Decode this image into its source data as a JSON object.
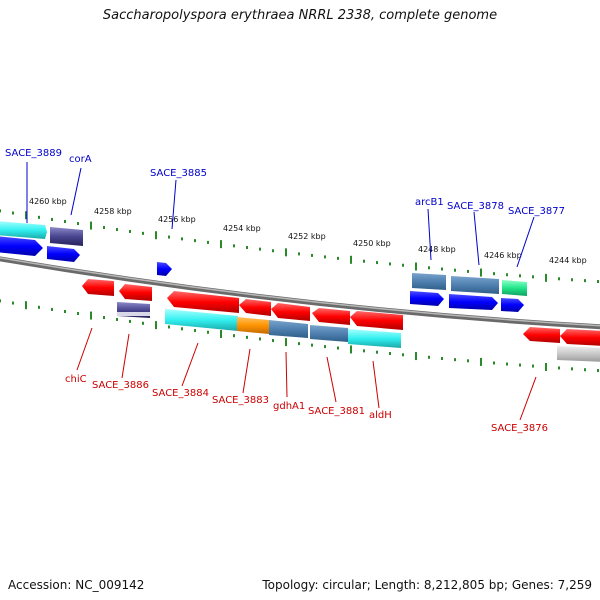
{
  "title": "Saccharopolyspora erythraea NRRL 2338, complete genome",
  "footer": {
    "accession": "Accession: NC_009142",
    "topology": "Topology: circular; Length: 8,212,805 bp; Genes: 7,259"
  },
  "scale_labels": [
    "4260 kbp",
    "4258 kbp",
    "4256 kbp",
    "4254 kbp",
    "4252 kbp",
    "4250 kbp",
    "4248 kbp",
    "4246 kbp",
    "4244 kbp"
  ],
  "forward_genes": [
    "SACE_3889",
    "corA",
    "SACE_3885",
    "arcB1",
    "SACE_3878",
    "SACE_3877"
  ],
  "reverse_genes": [
    "chiC",
    "SACE_3886",
    "SACE_3884",
    "SACE_3883",
    "gdhA1",
    "SACE_3881",
    "aldH",
    "SACE_3876"
  ],
  "colors": {
    "forward_label": "#0000cc",
    "reverse_label": "#cc0000",
    "scale_tick": "#2a8a2a",
    "backbone": "#7a7a7a"
  }
}
